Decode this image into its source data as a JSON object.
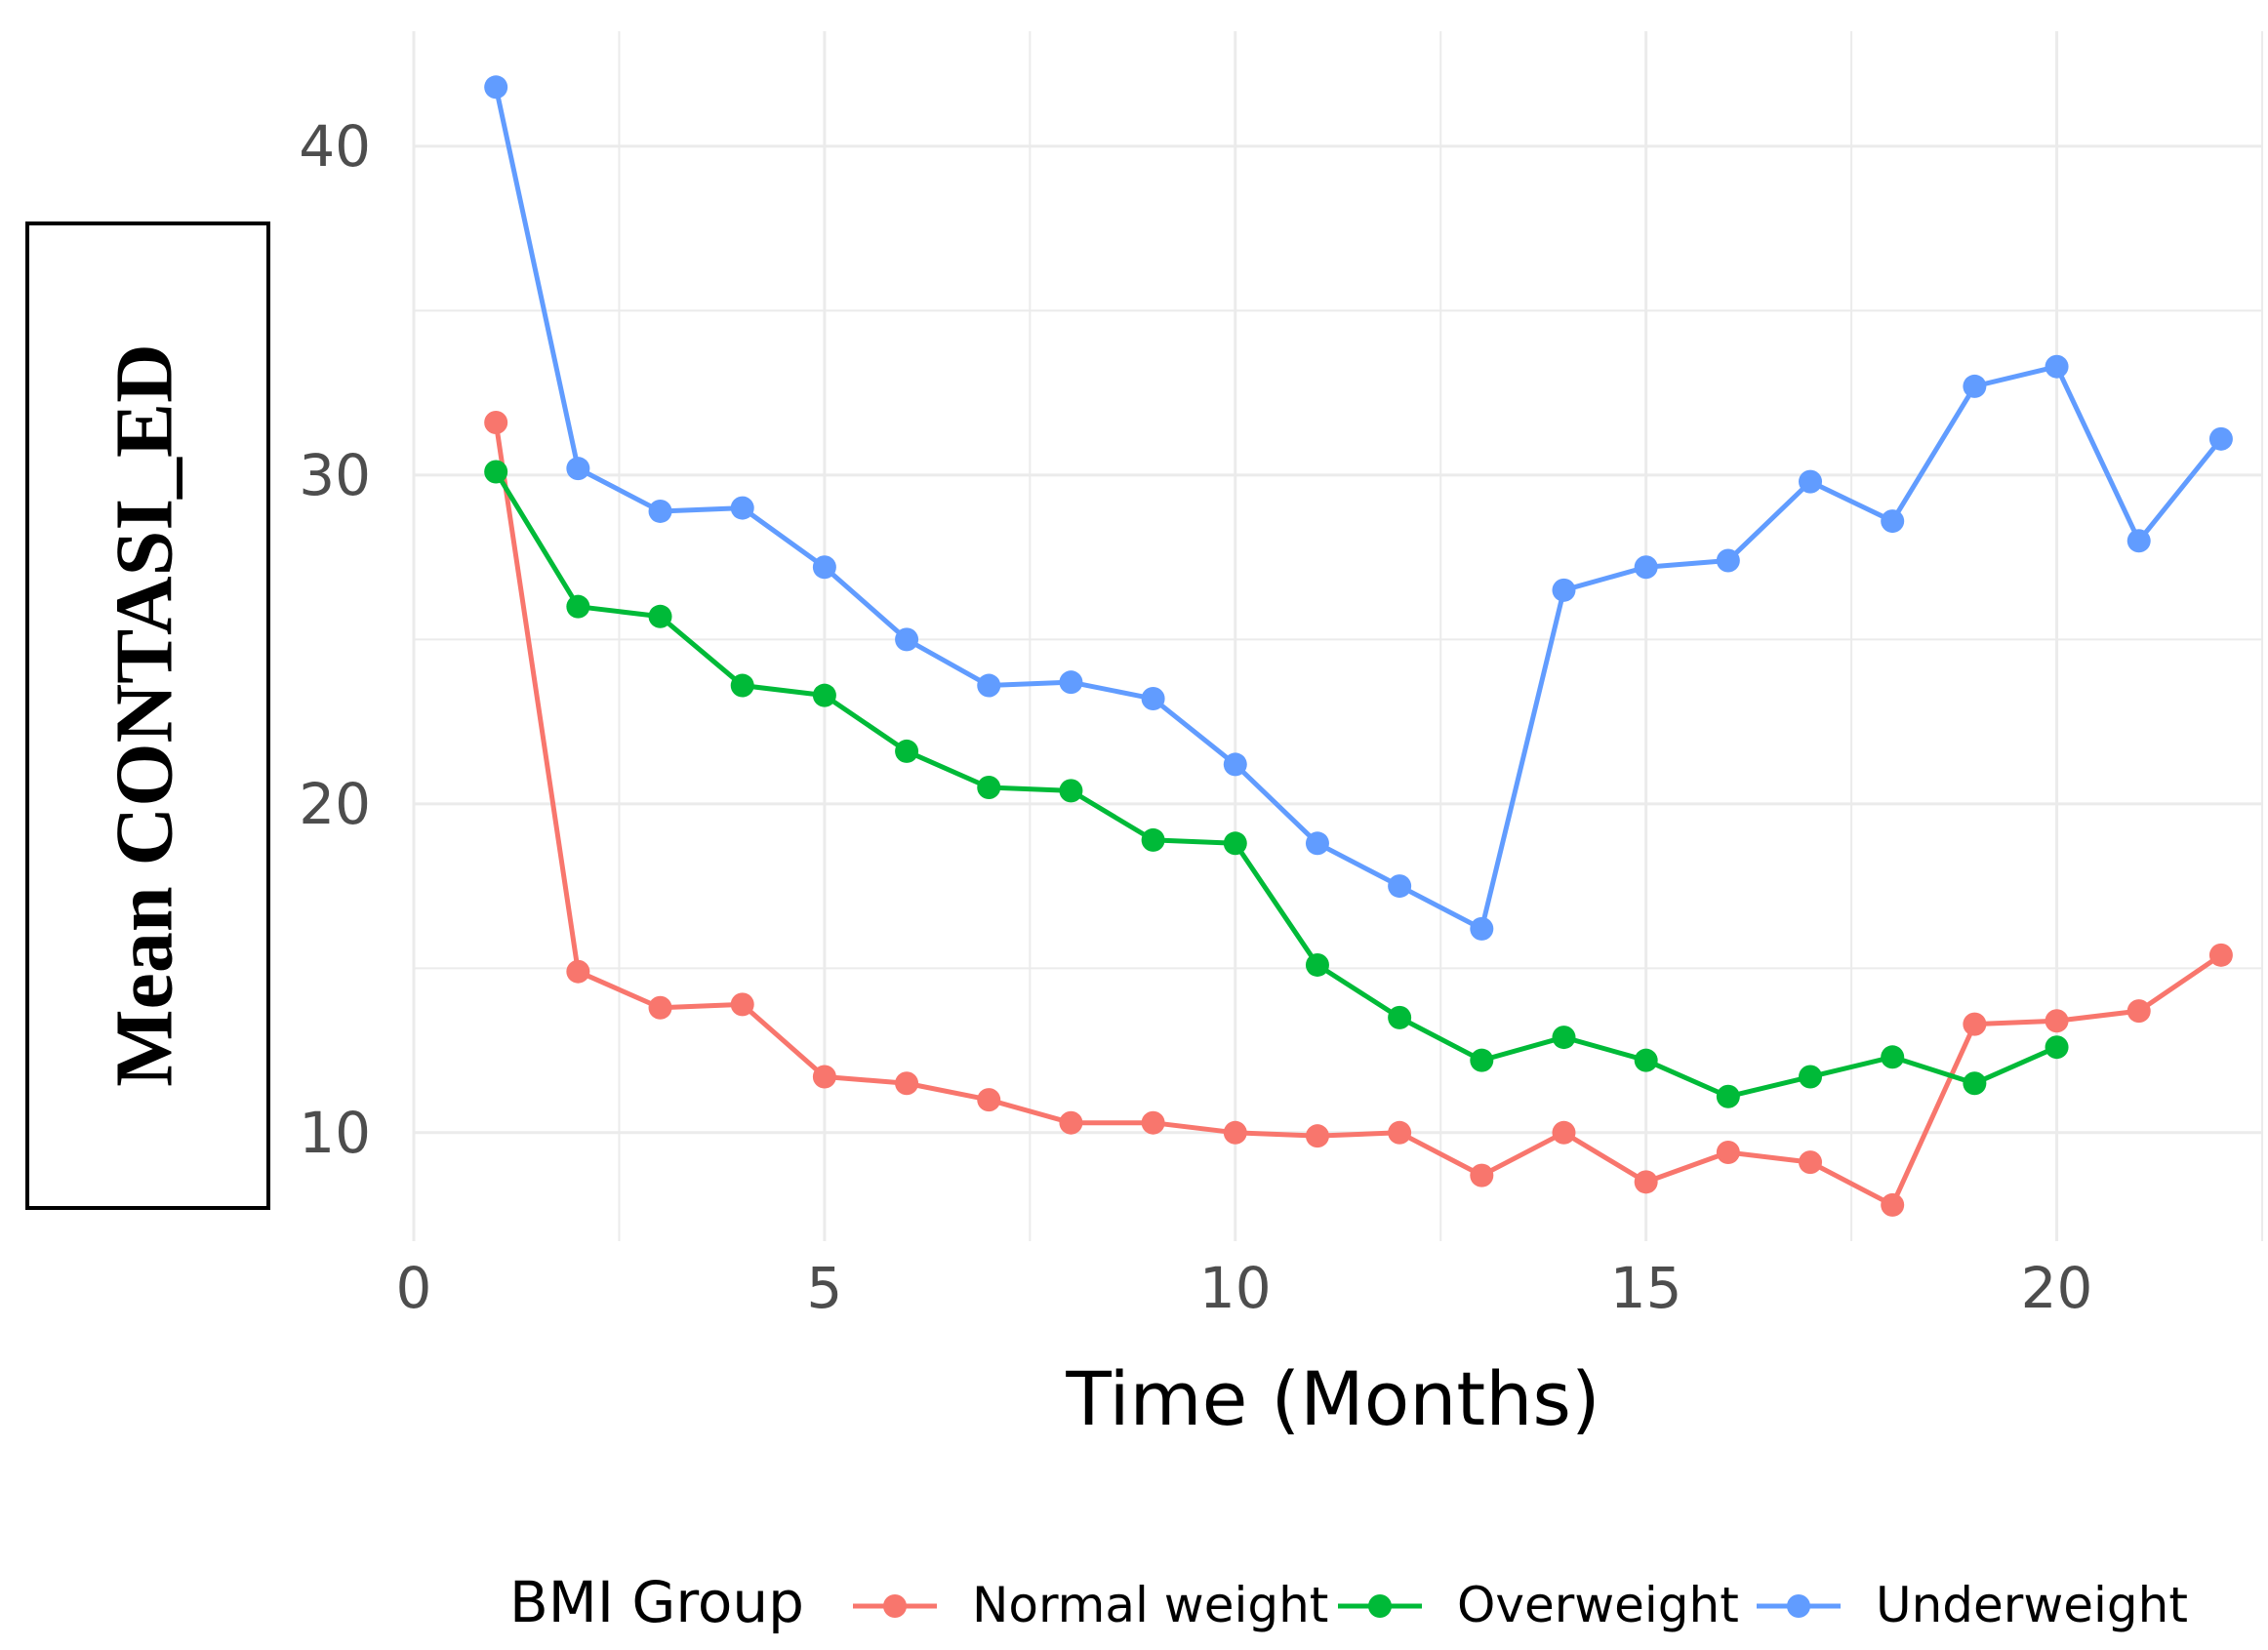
{
  "chart_data": {
    "type": "line",
    "title": "",
    "xlabel": "Time (Months)",
    "ylabel": "Mean CONTASI_ED",
    "xlim": [
      0,
      22.5
    ],
    "ylim": [
      6.7,
      43.5
    ],
    "x_ticks": [
      0,
      5,
      10,
      15,
      20
    ],
    "x_tick_labels": [
      "0",
      "5",
      "10",
      "15",
      "20"
    ],
    "y_ticks": [
      10,
      20,
      30,
      40
    ],
    "y_tick_labels": [
      "10",
      "20",
      "30",
      "40"
    ],
    "grid": true,
    "legend": {
      "title": "BMI Group",
      "position": "bottom"
    },
    "series": [
      {
        "name": "Normal weight",
        "color": "#F8766D",
        "x": [
          1,
          2,
          3,
          4,
          5,
          6,
          7,
          8,
          9,
          10,
          11,
          12,
          13,
          14,
          15,
          16,
          17,
          18,
          19,
          20,
          21,
          22
        ],
        "values": [
          31.6,
          14.9,
          13.8,
          13.9,
          11.7,
          11.5,
          11.0,
          10.3,
          10.3,
          10.0,
          9.9,
          10.0,
          8.7,
          10.0,
          8.5,
          9.4,
          9.1,
          7.8,
          13.3,
          13.4,
          13.7,
          15.4
        ]
      },
      {
        "name": "Overweight",
        "color": "#00BA38",
        "x": [
          1,
          2,
          3,
          4,
          5,
          6,
          7,
          8,
          9,
          10,
          11,
          12,
          13,
          14,
          15,
          16,
          17,
          18,
          19,
          20
        ],
        "values": [
          30.1,
          26.0,
          25.7,
          23.6,
          23.3,
          21.6,
          20.5,
          20.4,
          18.9,
          18.8,
          15.1,
          13.5,
          12.2,
          12.9,
          12.2,
          11.1,
          11.7,
          12.3,
          11.5,
          12.6
        ]
      },
      {
        "name": "Underweight",
        "color": "#619CFF",
        "x": [
          1,
          2,
          3,
          4,
          5,
          6,
          7,
          8,
          9,
          10,
          11,
          12,
          13,
          14,
          15,
          16,
          17,
          18,
          19,
          20,
          21,
          22
        ],
        "values": [
          41.8,
          30.2,
          28.9,
          29.0,
          27.2,
          25.0,
          23.6,
          23.7,
          23.2,
          21.2,
          18.8,
          17.5,
          16.2,
          26.5,
          27.2,
          27.4,
          29.8,
          28.6,
          32.7,
          33.3,
          28.0,
          31.1
        ]
      }
    ]
  }
}
